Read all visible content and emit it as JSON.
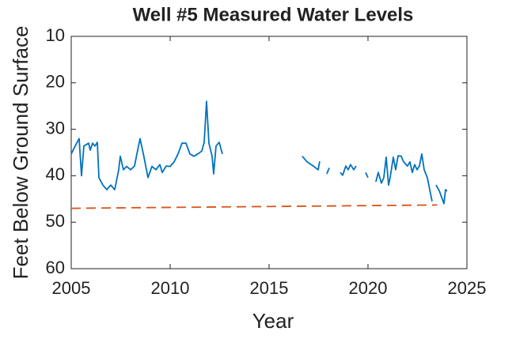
{
  "chart_data": {
    "type": "line",
    "title": "Well #5 Measured Water Levels",
    "xlabel": "Year",
    "ylabel": "Feet Below Ground Surface",
    "xlim": [
      2005,
      2025
    ],
    "xticks": [
      2005,
      2010,
      2015,
      2020,
      2025
    ],
    "ylim": [
      10,
      60
    ],
    "yticks": [
      10,
      20,
      30,
      40,
      50,
      60
    ],
    "y_reversed": true,
    "series": [
      {
        "color": "#0072bd",
        "dashed": false,
        "x": [
          2005.0,
          2005.2,
          2005.4,
          2005.52,
          2005.64,
          2005.88,
          2005.96,
          2006.08,
          2006.2,
          2006.32,
          2006.4,
          2006.6,
          2006.8,
          2007.0,
          2007.2,
          2007.4,
          2007.48,
          2007.64,
          2007.8,
          2008.0,
          2008.2,
          2008.32,
          2008.48,
          2008.68,
          2008.88,
          2009.08,
          2009.28,
          2009.48,
          2009.6,
          2009.8,
          2010.0,
          2010.2,
          2010.4,
          2010.6,
          2010.8,
          2011.0,
          2011.2,
          2011.4,
          2011.6,
          2011.72,
          2011.84,
          2011.96,
          2012.12,
          2012.2,
          2012.32,
          2012.48,
          2012.64,
          2014.0,
          2016.68,
          2016.92,
          2017.2,
          2017.48,
          2017.56,
          2017.7,
          2017.92,
          2018.04,
          2018.3,
          2018.6,
          2018.72,
          2018.88,
          2019.0,
          2019.12,
          2019.28,
          2019.4,
          2019.6,
          2019.88,
          2020.0,
          2020.2,
          2020.4,
          2020.52,
          2020.68,
          2020.8,
          2020.92,
          2021.04,
          2021.12,
          2021.28,
          2021.4,
          2021.52,
          2021.68,
          2021.8,
          2022.0,
          2022.12,
          2022.24,
          2022.36,
          2022.48,
          2022.6,
          2022.72,
          2022.84,
          2023.0,
          2023.12,
          2023.24,
          2023.32,
          2023.44,
          2023.6,
          2023.72,
          2023.84,
          2023.92,
          2024.0
        ],
        "values": [
          35.3,
          33.6,
          32,
          40,
          33.6,
          33,
          34.5,
          33,
          33.6,
          32.8,
          40.4,
          42,
          43,
          42,
          43,
          38.7,
          35.8,
          38.7,
          38,
          38.7,
          37.9,
          35.3,
          32,
          36,
          40.4,
          38,
          38.7,
          37.6,
          39.3,
          37.9,
          38,
          37,
          35.3,
          33,
          33,
          35.3,
          35.8,
          35.3,
          34.7,
          32.8,
          24,
          33,
          35.8,
          39.6,
          33.6,
          32.8,
          35.3,
          null,
          35.8,
          37,
          37.8,
          38.7,
          36.9,
          null,
          39.6,
          38.3,
          null,
          39.3,
          39.9,
          37.9,
          38.7,
          37.6,
          38.7,
          37.9,
          null,
          39.3,
          40.4,
          null,
          41.3,
          39.3,
          41.6,
          40.4,
          36,
          42,
          40.4,
          36,
          38.7,
          35.7,
          35.8,
          37,
          37.9,
          37,
          39.3,
          37.6,
          38.7,
          37.9,
          35.3,
          38.7,
          40.4,
          43,
          45.5,
          null,
          42,
          43.2,
          44.6,
          46,
          43,
          43.3
        ]
      },
      {
        "color": "#d95319",
        "dashed": true,
        "x": [
          2005,
          2023.5
        ],
        "values": [
          47,
          46.3
        ]
      }
    ]
  }
}
